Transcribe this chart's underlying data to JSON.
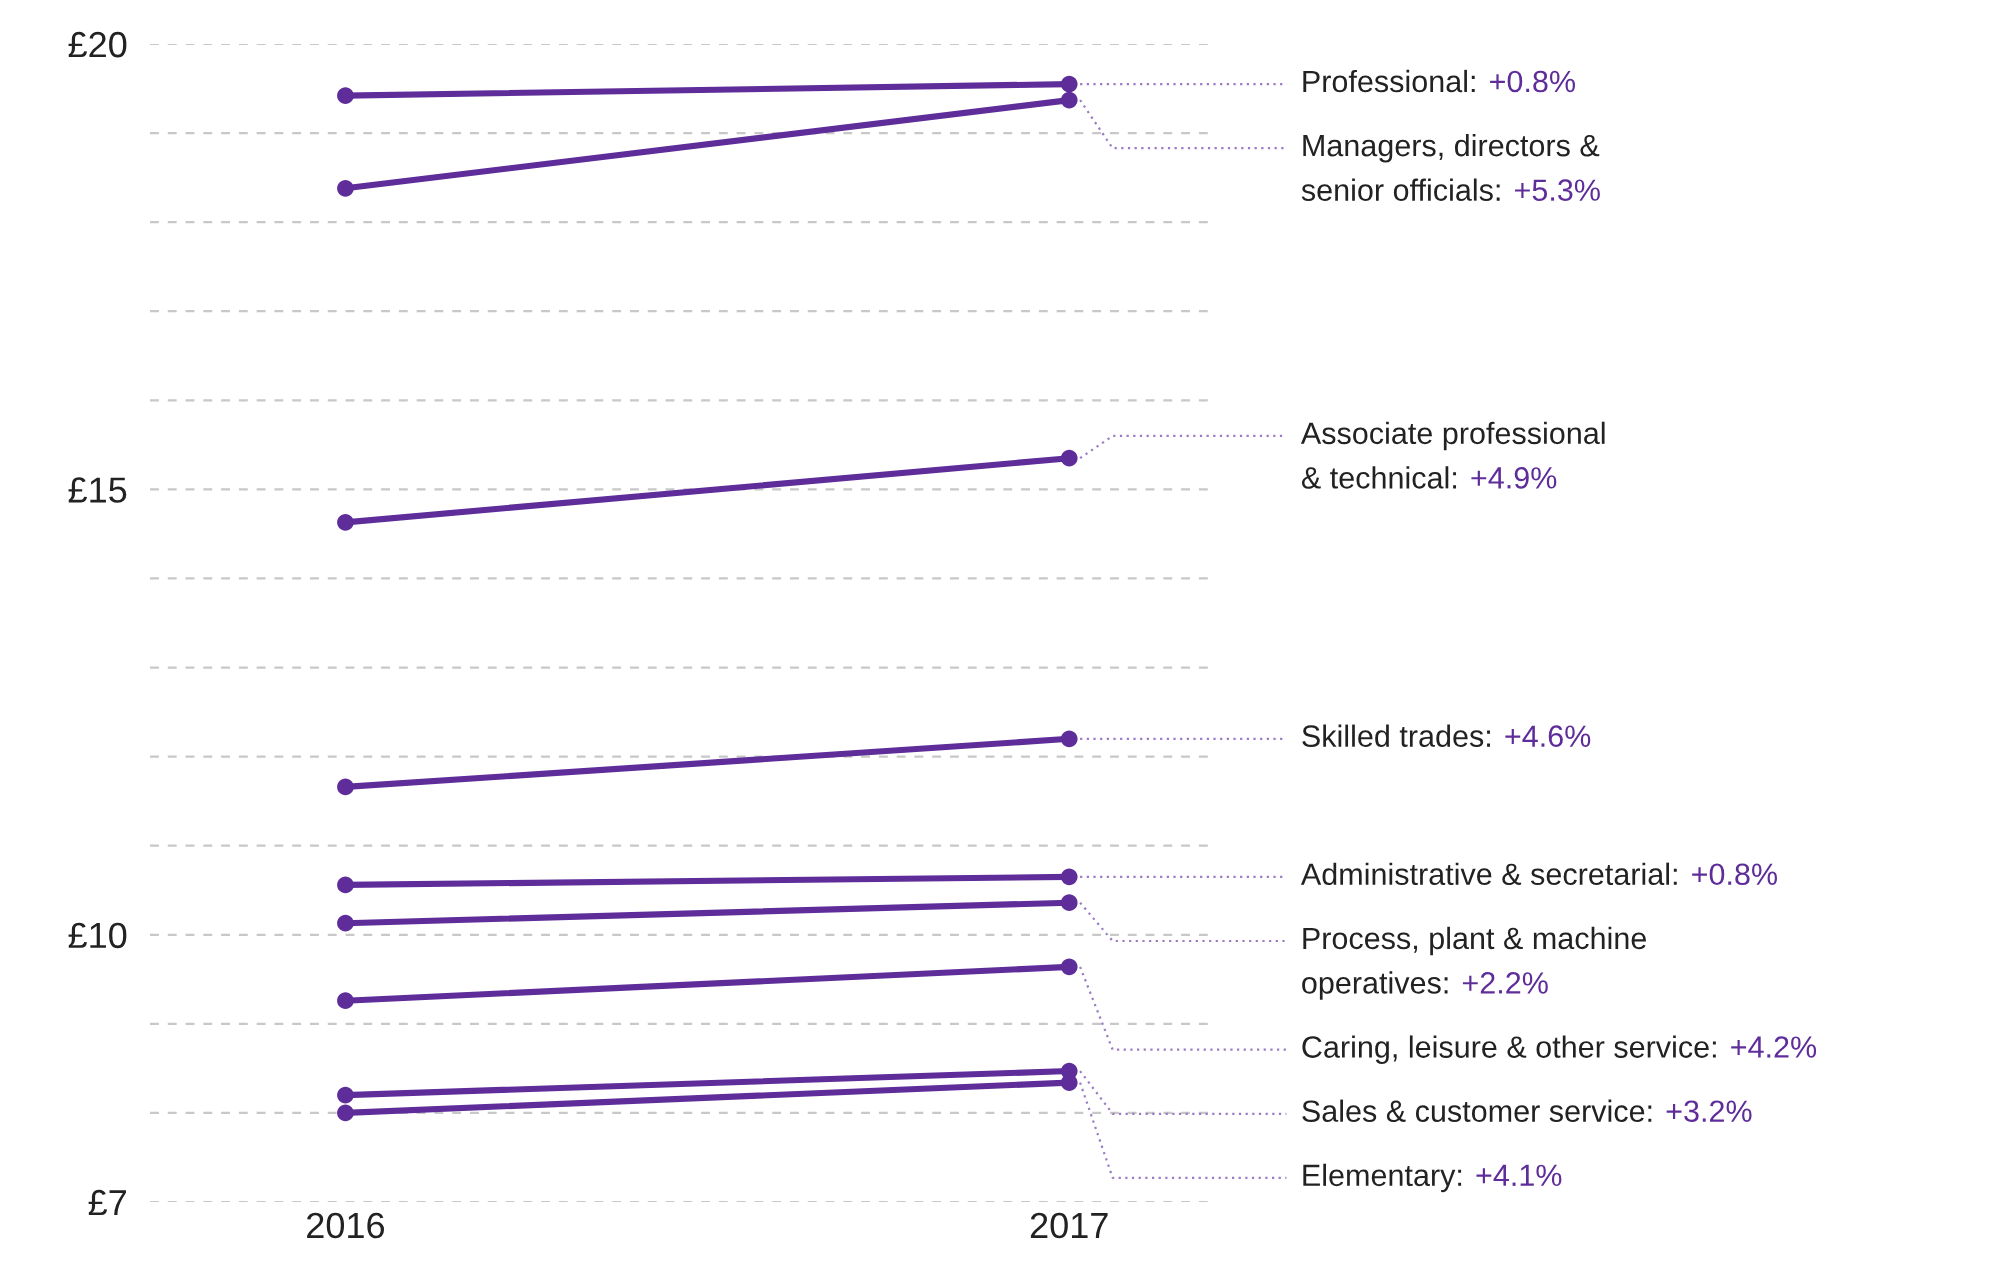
{
  "chart_data": {
    "type": "line",
    "categories": [
      "2016",
      "2017"
    ],
    "series": [
      {
        "name": "Professional:",
        "color": "#5e2d9a",
        "values": [
          19.42,
          19.55
        ]
      },
      {
        "name": "Managers, directors &\nsenior officials:",
        "color": "#5e2d9a",
        "values": [
          18.38,
          19.37
        ]
      },
      {
        "name": "Associate professional\n& technical:",
        "color": "#5e2d9a",
        "values": [
          14.63,
          15.35
        ]
      },
      {
        "name": "Skilled trades:",
        "color": "#5e2d9a",
        "values": [
          11.66,
          12.2
        ]
      },
      {
        "name": "Administrative & secretarial:",
        "color": "#5e2d9a",
        "values": [
          10.56,
          10.65
        ]
      },
      {
        "name": "Process, plant & machine\noperatives:",
        "color": "#5e2d9a",
        "values": [
          10.13,
          10.36
        ]
      },
      {
        "name": "Caring, leisure & other service:",
        "color": "#5e2d9a",
        "values": [
          9.26,
          9.64
        ]
      },
      {
        "name": "Sales & customer service:",
        "color": "#5e2d9a",
        "values": [
          8.2,
          8.47
        ]
      },
      {
        "name": "Elementary:",
        "color": "#5e2d9a",
        "values": [
          8.0,
          8.34
        ]
      }
    ],
    "annotations": [
      "+0.8%",
      "+5.3%",
      "+4.9%",
      "+4.6%",
      "+0.8%",
      "+2.2%",
      "+4.2%",
      "+3.2%",
      "+4.1%"
    ],
    "ylim": [
      7,
      20
    ],
    "yticks": [
      {
        "value": 7,
        "label": "£7"
      },
      {
        "value": 8,
        "label": null
      },
      {
        "value": 9,
        "label": null
      },
      {
        "value": 10,
        "label": "£10"
      },
      {
        "value": 11,
        "label": null
      },
      {
        "value": 12,
        "label": null
      },
      {
        "value": 13,
        "label": null
      },
      {
        "value": 14,
        "label": null
      },
      {
        "value": 15,
        "label": "£15"
      },
      {
        "value": 16,
        "label": null
      },
      {
        "value": 17,
        "label": null
      },
      {
        "value": 18,
        "label": null
      },
      {
        "value": 19,
        "label": null
      },
      {
        "value": 20,
        "label": "£20"
      }
    ],
    "grid": "y",
    "legend": false,
    "marker": "circle",
    "line_style": "solid"
  }
}
